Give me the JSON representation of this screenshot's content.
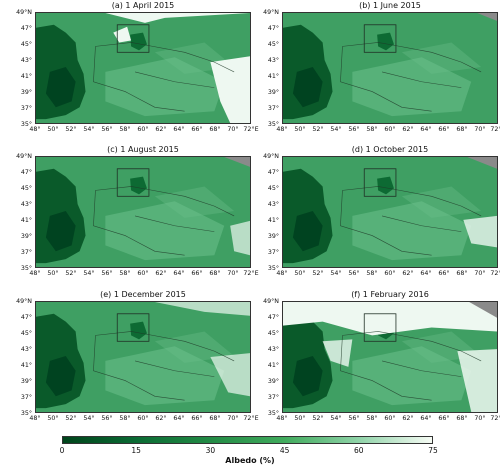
{
  "panels": [
    {
      "title": "(a) 1 April 2015",
      "variant": "april"
    },
    {
      "title": "(b) 1 June 2015",
      "variant": "june"
    },
    {
      "title": "(c) 1 August 2015",
      "variant": "august"
    },
    {
      "title": "(d) 1 October 2015",
      "variant": "october"
    },
    {
      "title": "(e) 1 December 2015",
      "variant": "december"
    },
    {
      "title": "(f) 1 February 2016",
      "variant": "february"
    }
  ],
  "lat_labels": [
    "49°N",
    "47°",
    "45°",
    "43°",
    "41°",
    "39°",
    "37°",
    "35°"
  ],
  "lon_labels": [
    "48°",
    "50°",
    "52°",
    "54°",
    "56°",
    "58°",
    "60°",
    "62°",
    "64°",
    "66°",
    "68°",
    "70°",
    "72°E"
  ],
  "colorbar": {
    "label": "Albedo (%)",
    "ticks": [
      "0",
      "15",
      "30",
      "45",
      "60",
      "75"
    ],
    "colors": [
      "#00441b",
      "#0b6b34",
      "#238b45",
      "#41ab5d",
      "#8fd3a8",
      "#f7fcf5"
    ]
  },
  "colors": {
    "caspian": "#0a5a2a",
    "land": "#3f9f63",
    "land_light": "#6cc08d",
    "snow": "#eef8f1",
    "nodata": "#8a8a8a",
    "lake": "#0d6a33"
  }
}
